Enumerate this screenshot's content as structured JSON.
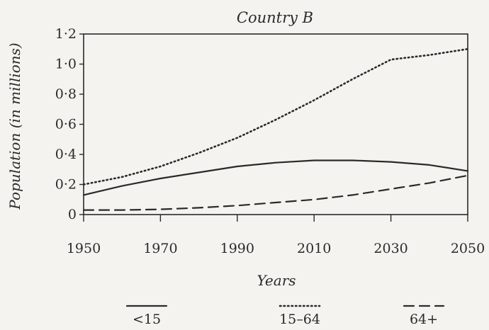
{
  "chart_data": {
    "type": "line",
    "title": "Country B",
    "xlabel": "Years",
    "ylabel": "Population (in millions)",
    "x_ticks": [
      "1950",
      "1970",
      "1990",
      "2010",
      "2030",
      "2050"
    ],
    "y_ticks": [
      "0",
      "0·2",
      "0·4",
      "0·6",
      "0·8",
      "1·0",
      "1·2"
    ],
    "xlim": [
      1950,
      2050
    ],
    "ylim": [
      0,
      1.2
    ],
    "grid": false,
    "legend_position": "bottom",
    "x": [
      1950,
      1960,
      1970,
      1980,
      1990,
      2000,
      2010,
      2020,
      2030,
      2040,
      2050
    ],
    "series": [
      {
        "name": "<15",
        "style": "solid",
        "values": [
          0.13,
          0.19,
          0.24,
          0.28,
          0.32,
          0.345,
          0.36,
          0.36,
          0.35,
          0.33,
          0.29
        ]
      },
      {
        "name": "15–64",
        "style": "dotted",
        "values": [
          0.2,
          0.25,
          0.32,
          0.41,
          0.51,
          0.63,
          0.76,
          0.9,
          1.03,
          1.06,
          1.1
        ]
      },
      {
        "name": "64+",
        "style": "dashed",
        "values": [
          0.03,
          0.03,
          0.035,
          0.045,
          0.06,
          0.08,
          0.1,
          0.13,
          0.17,
          0.21,
          0.26
        ]
      }
    ]
  }
}
